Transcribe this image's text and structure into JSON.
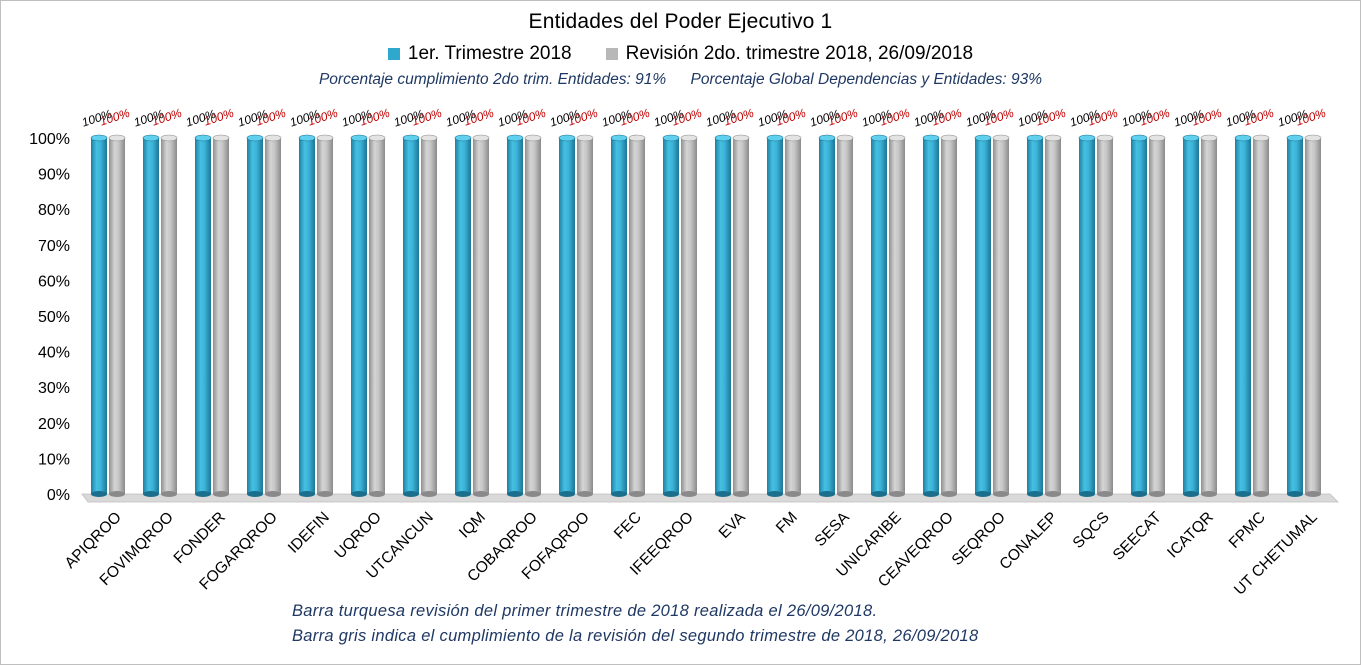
{
  "chart_data": {
    "type": "bar",
    "title": "Entidades del Poder Ejecutivo 1",
    "categories": [
      "APIQROO",
      "FOVIMQROO",
      "FONDER",
      "FOGARQROO",
      "IDEFIN",
      "UQROO",
      "UTCANCUN",
      "IQM",
      "COBAQROO",
      "FOFAQROO",
      "FEC",
      "IFEEQROO",
      "EVA",
      "FM",
      "SESA",
      "UNICARIBE",
      "CEAVEQROO",
      "SEQROO",
      "CONALEP",
      "SQCS",
      "SEECAT",
      "ICATQR",
      "FPMC",
      "UT CHETUMAL"
    ],
    "series": [
      {
        "name": "1er. Trimestre 2018",
        "values": [
          100,
          100,
          100,
          100,
          100,
          100,
          100,
          100,
          100,
          100,
          100,
          100,
          100,
          100,
          100,
          100,
          100,
          100,
          100,
          100,
          100,
          100,
          100,
          100
        ],
        "color": "#2ea8cc"
      },
      {
        "name": "Revisión 2do. trimestre 2018, 26/09/2018",
        "values": [
          100,
          100,
          100,
          100,
          100,
          100,
          100,
          100,
          100,
          100,
          100,
          100,
          100,
          100,
          100,
          100,
          100,
          100,
          100,
          100,
          100,
          100,
          100,
          100
        ],
        "color": "#b8b8b8"
      }
    ],
    "data_labels": [
      [
        "100%",
        "100%",
        "100%",
        "100%",
        "100%",
        "100%",
        "100%",
        "100%",
        "100%",
        "100%",
        "100%",
        "100%",
        "100%",
        "100%",
        "100%",
        "100%",
        "100%",
        "100%",
        "100%",
        "100%",
        "100%",
        "100%",
        "100%",
        "100%"
      ],
      [
        "100%",
        "100%",
        "100%",
        "100%",
        "100%",
        "100%",
        "100%",
        "100%",
        "100%",
        "100%",
        "100%",
        "100%",
        "100%",
        "100%",
        "100%",
        "100%",
        "100%",
        "100%",
        "100%",
        "100%",
        "100%",
        "100%",
        "100%",
        "100%"
      ]
    ],
    "y_ticks": [
      "0%",
      "10%",
      "20%",
      "30%",
      "40%",
      "50%",
      "60%",
      "70%",
      "80%",
      "90%",
      "100%"
    ],
    "ylim": [
      0,
      100
    ],
    "grid": false,
    "legend_position": "top"
  },
  "notes": {
    "top_left": "Porcentaje cumplimiento 2do trim. Entidades: 91%",
    "top_right": "Porcentaje Global  Dependencias  y Entidades: 93%",
    "bottom_1": "Barra turquesa revisión del primer trimestre de 2018 realizada el 26/09/2018.",
    "bottom_2": "Barra gris indica el cumplimiento de la revisión del segundo trimestre de 2018, 26/09/2018"
  }
}
